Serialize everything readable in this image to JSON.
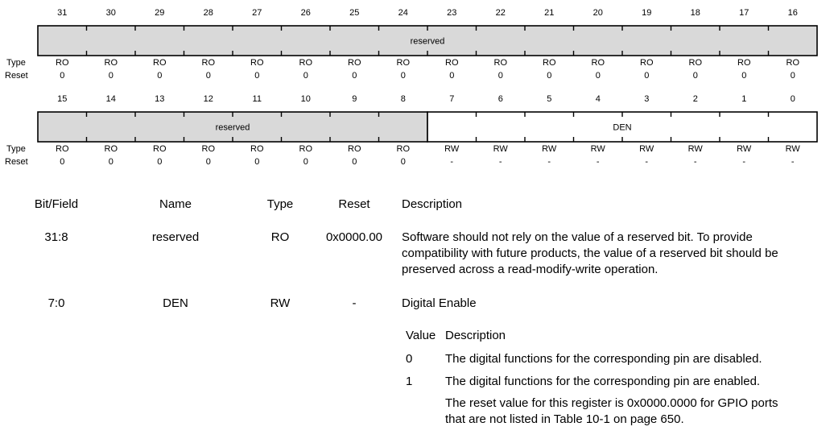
{
  "register_upper": {
    "bits": [
      "31",
      "30",
      "29",
      "28",
      "27",
      "26",
      "25",
      "24",
      "23",
      "22",
      "21",
      "20",
      "19",
      "18",
      "17",
      "16"
    ],
    "fields": [
      {
        "label": "reserved",
        "span": 16,
        "shaded": true
      }
    ],
    "type_label": "Type",
    "reset_label": "Reset",
    "types": [
      "RO",
      "RO",
      "RO",
      "RO",
      "RO",
      "RO",
      "RO",
      "RO",
      "RO",
      "RO",
      "RO",
      "RO",
      "RO",
      "RO",
      "RO",
      "RO"
    ],
    "resets": [
      "0",
      "0",
      "0",
      "0",
      "0",
      "0",
      "0",
      "0",
      "0",
      "0",
      "0",
      "0",
      "0",
      "0",
      "0",
      "0"
    ]
  },
  "register_lower": {
    "bits": [
      "15",
      "14",
      "13",
      "12",
      "11",
      "10",
      "9",
      "8",
      "7",
      "6",
      "5",
      "4",
      "3",
      "2",
      "1",
      "0"
    ],
    "fields": [
      {
        "label": "reserved",
        "span": 8,
        "shaded": true
      },
      {
        "label": "DEN",
        "span": 8,
        "shaded": false
      }
    ],
    "type_label": "Type",
    "reset_label": "Reset",
    "types": [
      "RO",
      "RO",
      "RO",
      "RO",
      "RO",
      "RO",
      "RO",
      "RO",
      "RW",
      "RW",
      "RW",
      "RW",
      "RW",
      "RW",
      "RW",
      "RW"
    ],
    "resets": [
      "0",
      "0",
      "0",
      "0",
      "0",
      "0",
      "0",
      "0",
      "-",
      "-",
      "-",
      "-",
      "-",
      "-",
      "-",
      "-"
    ]
  },
  "table": {
    "headers": {
      "bit_field": "Bit/Field",
      "name": "Name",
      "type": "Type",
      "reset": "Reset",
      "description": "Description"
    },
    "rows": [
      {
        "bit_field": "31:8",
        "name": "reserved",
        "type": "RO",
        "reset": "0x0000.00",
        "description_lines": [
          "Software should not rely on the value of a reserved bit. To provide",
          "compatibility with future products, the value of a reserved bit should be",
          "preserved across a read-modify-write operation."
        ]
      },
      {
        "bit_field": "7:0",
        "name": "DEN",
        "type": "RW",
        "reset": "-",
        "description": "Digital Enable",
        "value_header": {
          "value": "Value",
          "description": "Description"
        },
        "values": [
          {
            "value": "0",
            "description": "The digital functions for the corresponding pin are disabled."
          },
          {
            "value": "1",
            "description": "The digital functions for the corresponding pin are enabled."
          }
        ],
        "note_lines": [
          "The reset value for this register is 0x0000.0000 for GPIO ports",
          "that are not listed in Table 10-1 on page 650."
        ]
      }
    ]
  }
}
